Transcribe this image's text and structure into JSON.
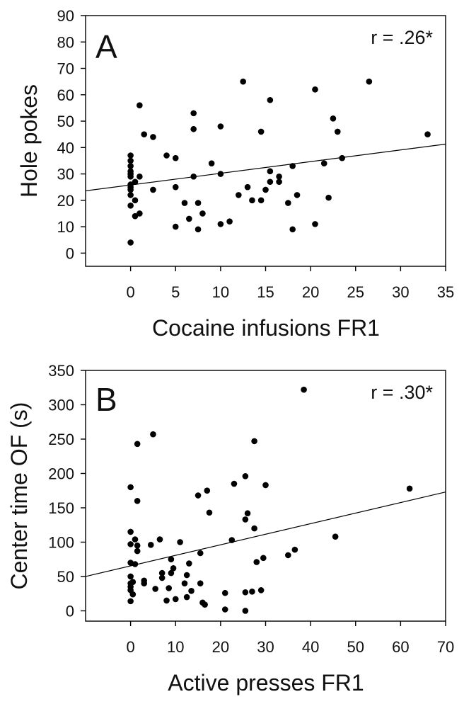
{
  "chart_data": [
    {
      "type": "scatter",
      "panel_letter": "A",
      "annotation": "r = .26*",
      "xlabel": "Cocaine infusions FR1",
      "ylabel": "Hole pokes",
      "xlim": [
        -5,
        35
      ],
      "ylim": [
        -5,
        90
      ],
      "xticks": [
        0,
        5,
        10,
        15,
        20,
        25,
        30,
        35
      ],
      "yticks": [
        0,
        10,
        20,
        30,
        40,
        50,
        60,
        70,
        80,
        90
      ],
      "fit_line": {
        "x": [
          -5,
          35
        ],
        "y": [
          23.6,
          41.3
        ]
      },
      "points": [
        [
          0,
          4
        ],
        [
          0,
          18
        ],
        [
          0,
          22
        ],
        [
          0,
          24
        ],
        [
          0,
          25
        ],
        [
          0,
          26
        ],
        [
          0,
          29
        ],
        [
          0,
          30
        ],
        [
          0,
          31
        ],
        [
          0,
          33
        ],
        [
          0,
          35
        ],
        [
          0,
          37
        ],
        [
          0.5,
          14
        ],
        [
          0.5,
          20
        ],
        [
          0.5,
          27
        ],
        [
          1,
          15
        ],
        [
          1,
          29
        ],
        [
          1,
          56
        ],
        [
          1.5,
          45
        ],
        [
          2.5,
          24
        ],
        [
          2.5,
          44
        ],
        [
          4,
          37
        ],
        [
          5,
          10
        ],
        [
          5,
          25
        ],
        [
          5,
          36
        ],
        [
          6,
          19
        ],
        [
          6.5,
          13
        ],
        [
          7,
          29
        ],
        [
          7,
          47
        ],
        [
          7,
          53
        ],
        [
          7.5,
          9
        ],
        [
          7.5,
          19
        ],
        [
          8,
          15
        ],
        [
          9,
          34
        ],
        [
          10,
          11
        ],
        [
          10,
          30
        ],
        [
          10,
          48
        ],
        [
          11,
          12
        ],
        [
          12,
          22
        ],
        [
          12.5,
          65
        ],
        [
          13,
          25
        ],
        [
          13.5,
          20
        ],
        [
          14.5,
          20
        ],
        [
          14.5,
          46
        ],
        [
          15,
          24
        ],
        [
          15.5,
          27
        ],
        [
          15.5,
          31
        ],
        [
          15.5,
          58
        ],
        [
          16.5,
          27
        ],
        [
          16.5,
          29
        ],
        [
          17.5,
          19
        ],
        [
          18,
          9
        ],
        [
          18,
          33
        ],
        [
          18.5,
          22
        ],
        [
          20.5,
          11
        ],
        [
          20.5,
          62
        ],
        [
          21.5,
          34
        ],
        [
          22,
          21
        ],
        [
          22.5,
          51
        ],
        [
          23,
          46
        ],
        [
          23.5,
          36
        ],
        [
          26.5,
          65
        ],
        [
          33,
          45
        ]
      ]
    },
    {
      "type": "scatter",
      "panel_letter": "B",
      "annotation": "r = .30*",
      "xlabel": "Active presses FR1",
      "ylabel": "Center time OF (s)",
      "xlim": [
        -10,
        70
      ],
      "ylim": [
        -15,
        350
      ],
      "xticks": [
        0,
        10,
        20,
        30,
        40,
        50,
        60,
        70
      ],
      "yticks": [
        0,
        50,
        100,
        150,
        200,
        250,
        300,
        350
      ],
      "fit_line": {
        "x": [
          -10,
          70
        ],
        "y": [
          50,
          173
        ]
      },
      "points": [
        [
          0,
          14
        ],
        [
          0,
          30
        ],
        [
          0,
          35
        ],
        [
          0,
          40
        ],
        [
          0,
          50
        ],
        [
          0,
          70
        ],
        [
          0,
          97
        ],
        [
          0,
          115
        ],
        [
          0,
          180
        ],
        [
          0.5,
          24
        ],
        [
          0.5,
          42
        ],
        [
          1,
          68
        ],
        [
          1,
          104
        ],
        [
          1.5,
          87
        ],
        [
          1.5,
          95
        ],
        [
          1.5,
          160
        ],
        [
          1.5,
          243
        ],
        [
          3,
          40
        ],
        [
          3,
          44
        ],
        [
          4.5,
          96
        ],
        [
          5,
          257
        ],
        [
          5.5,
          32
        ],
        [
          6.5,
          104
        ],
        [
          7,
          48
        ],
        [
          7,
          55
        ],
        [
          8,
          15
        ],
        [
          8.5,
          33
        ],
        [
          9,
          55
        ],
        [
          9,
          75
        ],
        [
          9.5,
          62
        ],
        [
          10,
          17
        ],
        [
          11,
          100
        ],
        [
          12,
          40
        ],
        [
          12.5,
          20
        ],
        [
          12.5,
          52
        ],
        [
          13,
          69
        ],
        [
          13.5,
          29
        ],
        [
          15,
          168
        ],
        [
          15.5,
          40
        ],
        [
          15.5,
          84
        ],
        [
          16,
          12
        ],
        [
          16.5,
          9
        ],
        [
          17,
          175
        ],
        [
          17.5,
          143
        ],
        [
          21,
          2
        ],
        [
          21,
          26
        ],
        [
          22.5,
          103
        ],
        [
          23,
          185
        ],
        [
          25.5,
          0
        ],
        [
          25.5,
          27
        ],
        [
          25.5,
          133
        ],
        [
          25.5,
          196
        ],
        [
          26,
          142
        ],
        [
          27,
          28
        ],
        [
          27.5,
          120
        ],
        [
          27.5,
          247
        ],
        [
          28,
          71
        ],
        [
          29,
          30
        ],
        [
          29.5,
          77
        ],
        [
          30,
          183
        ],
        [
          35,
          81
        ],
        [
          36.5,
          89
        ],
        [
          38.5,
          322
        ],
        [
          45.5,
          108
        ],
        [
          62,
          178
        ]
      ]
    }
  ]
}
